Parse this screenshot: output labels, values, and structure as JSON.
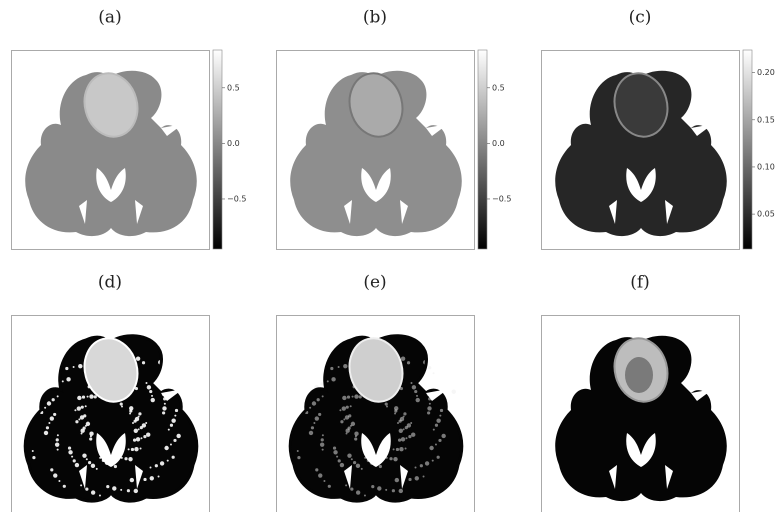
{
  "panels": [
    {
      "label": "(a)",
      "colorbar": {
        "lim": [
          -0.95,
          0.84
        ],
        "ticks": [
          0.5,
          {
            "value": 0,
            "label": "0.0"
          },
          {
            "value": -0.5,
            "label": "−0.5"
          }
        ]
      }
    },
    {
      "label": "(b)",
      "colorbar": {
        "lim": [
          -0.95,
          0.84
        ],
        "ticks": [
          0.5,
          {
            "value": 0,
            "label": "0.0"
          },
          {
            "value": -0.5,
            "label": "−0.5"
          }
        ]
      }
    },
    {
      "label": "(c)",
      "colorbar": {
        "lim": [
          0.013,
          0.224
        ],
        "ticks": [
          {
            "value": 0.2,
            "label": "0.20"
          },
          0.15,
          {
            "value": 0.1,
            "label": "0.10"
          },
          0.05
        ]
      }
    },
    {
      "label": "(d)"
    },
    {
      "label": "(e)"
    },
    {
      "label": "(f)"
    }
  ]
}
